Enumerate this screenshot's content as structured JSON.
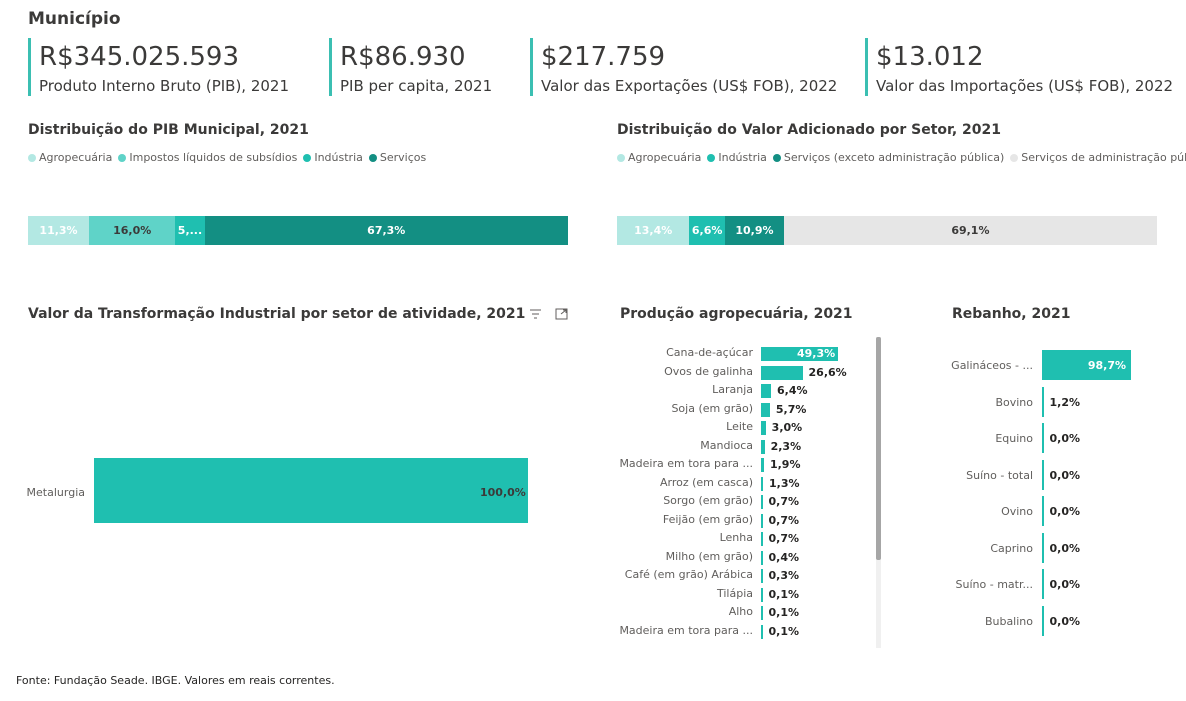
{
  "header": {
    "title": "Município"
  },
  "kpis": [
    {
      "value": "R$345.025.593",
      "label": "Produto Interno Bruto (PIB), 2021"
    },
    {
      "value": "R$86.930",
      "label": "PIB per capita, 2021"
    },
    {
      "value": "$217.759",
      "label": "Valor das Exportações (US$ FOB), 2022"
    },
    {
      "value": "$13.012",
      "label": "Valor das Importações (US$ FOB), 2022"
    }
  ],
  "pib": {
    "title": "Distribuição do PIB Municipal, 2021",
    "legend": [
      {
        "name": "Agropecuária",
        "color": "#b3e8e3"
      },
      {
        "name": "Impostos líquidos de subsídios",
        "color": "#5fd3c8"
      },
      {
        "name": "Indústria",
        "color": "#1fbfb0"
      },
      {
        "name": "Serviços",
        "color": "#138f83"
      }
    ],
    "segments": [
      {
        "label": "11,3%",
        "value": 11.3
      },
      {
        "label": "16,0%",
        "value": 16.0
      },
      {
        "label": "5,...",
        "value": 5.4
      },
      {
        "label": "67,3%",
        "value": 67.3
      }
    ]
  },
  "va": {
    "title": "Distribuição do Valor Adicionado por Setor, 2021",
    "legend": [
      {
        "name": "Agropecuária",
        "color": "#b3e8e3"
      },
      {
        "name": "Indústria",
        "color": "#1fbfb0"
      },
      {
        "name": "Serviços (exceto administração pública)",
        "color": "#138f83"
      },
      {
        "name": "Serviços de administração pública",
        "color": "#e6e6e6"
      }
    ],
    "segments": [
      {
        "label": "13,4%",
        "value": 13.4
      },
      {
        "label": "6,6%",
        "value": 6.6
      },
      {
        "label": "10,9%",
        "value": 10.9
      },
      {
        "label": "69,1%",
        "value": 69.1
      }
    ]
  },
  "vti": {
    "title": "Valor da Transformação Industrial por setor de atividade, 2021",
    "rows": [
      {
        "label": "Metalurgia",
        "value": 100.0,
        "text": "100,0%"
      }
    ]
  },
  "agro": {
    "title": "Produção agropecuária, 2021",
    "rows": [
      {
        "label": "Cana-de-açúcar",
        "value": 49.3,
        "text": "49,3%"
      },
      {
        "label": "Ovos de galinha",
        "value": 26.6,
        "text": "26,6%"
      },
      {
        "label": "Laranja",
        "value": 6.4,
        "text": "6,4%"
      },
      {
        "label": "Soja (em grão)",
        "value": 5.7,
        "text": "5,7%"
      },
      {
        "label": "Leite",
        "value": 3.0,
        "text": "3,0%"
      },
      {
        "label": "Mandioca",
        "value": 2.3,
        "text": "2,3%"
      },
      {
        "label": "Madeira em tora para ...",
        "value": 1.9,
        "text": "1,9%"
      },
      {
        "label": "Arroz (em casca)",
        "value": 1.3,
        "text": "1,3%"
      },
      {
        "label": "Sorgo (em grão)",
        "value": 0.7,
        "text": "0,7%"
      },
      {
        "label": "Feijão (em grão)",
        "value": 0.7,
        "text": "0,7%"
      },
      {
        "label": "Lenha",
        "value": 0.7,
        "text": "0,7%"
      },
      {
        "label": "Milho (em grão)",
        "value": 0.4,
        "text": "0,4%"
      },
      {
        "label": "Café (em grão) Arábica",
        "value": 0.3,
        "text": "0,3%"
      },
      {
        "label": "Tilápia",
        "value": 0.1,
        "text": "0,1%"
      },
      {
        "label": "Alho",
        "value": 0.1,
        "text": "0,1%"
      },
      {
        "label": "Madeira em tora para ...",
        "value": 0.1,
        "text": "0,1%"
      }
    ]
  },
  "rebanho": {
    "title": "Rebanho, 2021",
    "rows": [
      {
        "label": "Galináceos - ...",
        "value": 98.7,
        "text": "98,7%"
      },
      {
        "label": "Bovino",
        "value": 1.2,
        "text": "1,2%"
      },
      {
        "label": "Equino",
        "value": 0.0,
        "text": "0,0%"
      },
      {
        "label": "Suíno - total",
        "value": 0.0,
        "text": "0,0%"
      },
      {
        "label": "Ovino",
        "value": 0.0,
        "text": "0,0%"
      },
      {
        "label": "Caprino",
        "value": 0.0,
        "text": "0,0%"
      },
      {
        "label": "Suíno - matr...",
        "value": 0.0,
        "text": "0,0%"
      },
      {
        "label": "Bubalino",
        "value": 0.0,
        "text": "0,0%"
      }
    ]
  },
  "footer": {
    "source": "Fonte: Fundação Seade. IBGE. Valores em reais correntes."
  },
  "icons": {
    "filter": "filter-icon",
    "focus": "focus-mode-icon"
  }
}
